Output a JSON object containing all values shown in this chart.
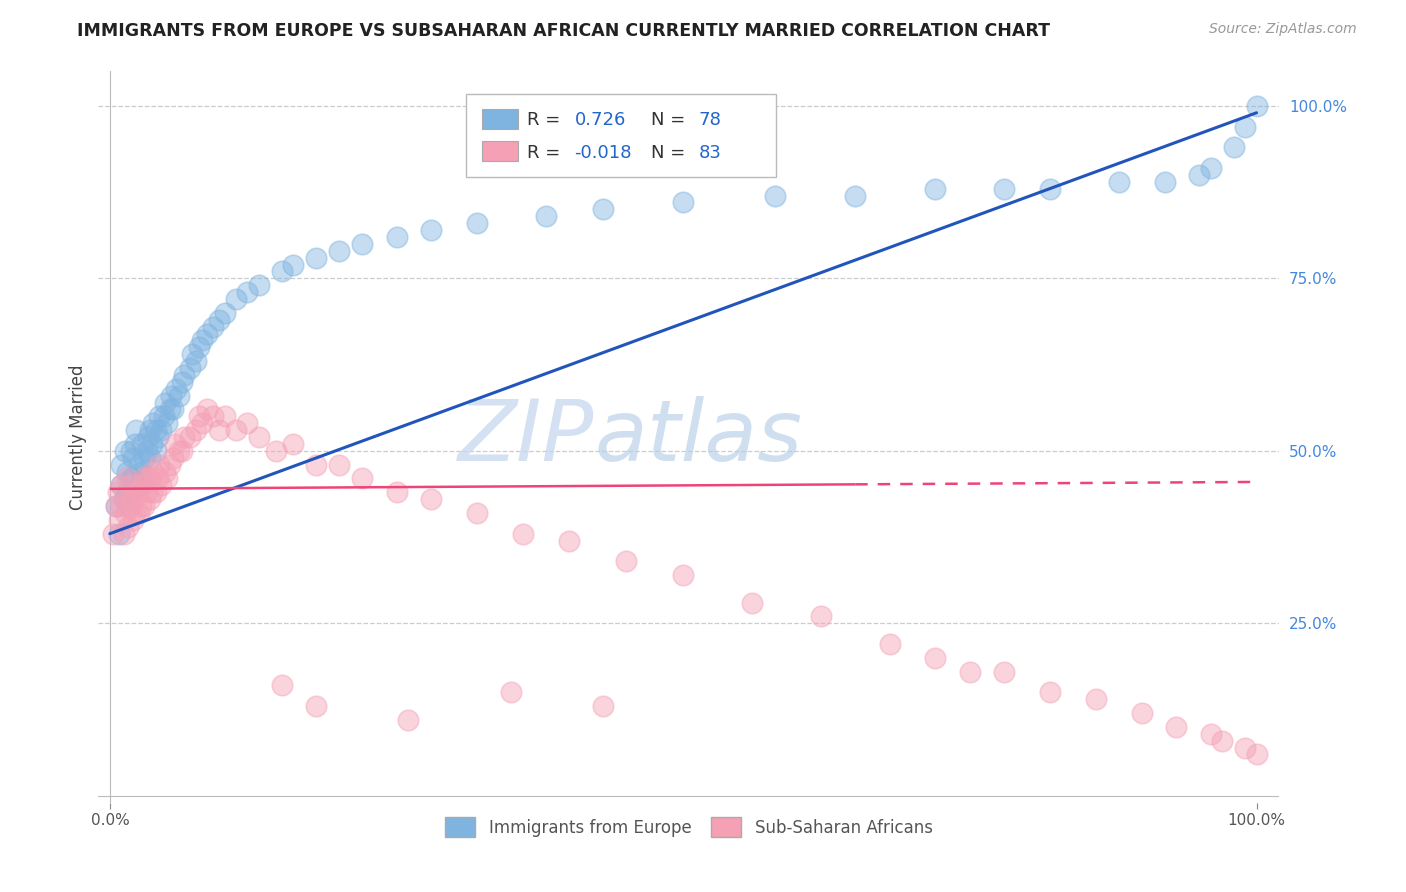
{
  "title": "IMMIGRANTS FROM EUROPE VS SUBSAHARAN AFRICAN CURRENTLY MARRIED CORRELATION CHART",
  "source": "Source: ZipAtlas.com",
  "ylabel": "Currently Married",
  "blue_color": "#7fb3e0",
  "pink_color": "#f5a0b5",
  "blue_line_color": "#2255bb",
  "pink_line_color": "#ee4477",
  "background_color": "#ffffff",
  "grid_color": "#cccccc",
  "watermark_zip": "ZIP",
  "watermark_atlas": "atlas",
  "legend_r1": "R =",
  "legend_v1": "0.726",
  "legend_n1_label": "N =",
  "legend_n1": "78",
  "legend_r2": "R =",
  "legend_v2": "-0.018",
  "legend_n2_label": "N =",
  "legend_n2": "83",
  "blue_scatter_x": [
    0.005,
    0.008,
    0.01,
    0.01,
    0.012,
    0.013,
    0.015,
    0.015,
    0.016,
    0.018,
    0.018,
    0.02,
    0.02,
    0.02,
    0.022,
    0.023,
    0.025,
    0.025,
    0.027,
    0.028,
    0.03,
    0.03,
    0.032,
    0.033,
    0.035,
    0.035,
    0.037,
    0.038,
    0.04,
    0.04,
    0.042,
    0.043,
    0.045,
    0.047,
    0.048,
    0.05,
    0.052,
    0.053,
    0.055,
    0.058,
    0.06,
    0.063,
    0.065,
    0.07,
    0.072,
    0.075,
    0.078,
    0.08,
    0.085,
    0.09,
    0.095,
    0.1,
    0.11,
    0.12,
    0.13,
    0.15,
    0.16,
    0.18,
    0.2,
    0.22,
    0.25,
    0.28,
    0.32,
    0.38,
    0.43,
    0.5,
    0.58,
    0.65,
    0.72,
    0.78,
    0.82,
    0.88,
    0.92,
    0.95,
    0.96,
    0.98,
    0.99,
    1.0
  ],
  "blue_scatter_y": [
    0.42,
    0.38,
    0.45,
    0.48,
    0.43,
    0.5,
    0.44,
    0.47,
    0.42,
    0.46,
    0.5,
    0.44,
    0.46,
    0.49,
    0.51,
    0.53,
    0.45,
    0.48,
    0.47,
    0.51,
    0.46,
    0.49,
    0.5,
    0.52,
    0.49,
    0.53,
    0.51,
    0.54,
    0.5,
    0.53,
    0.52,
    0.55,
    0.53,
    0.55,
    0.57,
    0.54,
    0.56,
    0.58,
    0.56,
    0.59,
    0.58,
    0.6,
    0.61,
    0.62,
    0.64,
    0.63,
    0.65,
    0.66,
    0.67,
    0.68,
    0.69,
    0.7,
    0.72,
    0.73,
    0.74,
    0.76,
    0.77,
    0.78,
    0.79,
    0.8,
    0.81,
    0.82,
    0.83,
    0.84,
    0.85,
    0.86,
    0.87,
    0.87,
    0.88,
    0.88,
    0.88,
    0.89,
    0.89,
    0.9,
    0.91,
    0.94,
    0.97,
    1.0
  ],
  "pink_scatter_x": [
    0.003,
    0.005,
    0.007,
    0.008,
    0.01,
    0.01,
    0.012,
    0.013,
    0.015,
    0.015,
    0.016,
    0.018,
    0.018,
    0.02,
    0.02,
    0.022,
    0.023,
    0.025,
    0.025,
    0.027,
    0.028,
    0.03,
    0.03,
    0.032,
    0.033,
    0.035,
    0.035,
    0.037,
    0.038,
    0.04,
    0.042,
    0.043,
    0.045,
    0.048,
    0.05,
    0.052,
    0.055,
    0.057,
    0.06,
    0.063,
    0.065,
    0.07,
    0.075,
    0.078,
    0.08,
    0.085,
    0.09,
    0.095,
    0.1,
    0.11,
    0.12,
    0.13,
    0.145,
    0.16,
    0.18,
    0.2,
    0.22,
    0.25,
    0.28,
    0.32,
    0.36,
    0.4,
    0.45,
    0.5,
    0.56,
    0.62,
    0.68,
    0.72,
    0.75,
    0.78,
    0.82,
    0.86,
    0.9,
    0.93,
    0.96,
    0.97,
    0.99,
    1.0,
    0.15,
    0.18,
    0.26,
    0.35,
    0.43
  ],
  "pink_scatter_y": [
    0.38,
    0.42,
    0.44,
    0.4,
    0.42,
    0.45,
    0.38,
    0.41,
    0.43,
    0.46,
    0.39,
    0.42,
    0.45,
    0.4,
    0.43,
    0.41,
    0.44,
    0.41,
    0.44,
    0.42,
    0.45,
    0.42,
    0.46,
    0.44,
    0.46,
    0.43,
    0.46,
    0.44,
    0.47,
    0.44,
    0.46,
    0.48,
    0.45,
    0.47,
    0.46,
    0.48,
    0.49,
    0.51,
    0.5,
    0.5,
    0.52,
    0.52,
    0.53,
    0.55,
    0.54,
    0.56,
    0.55,
    0.53,
    0.55,
    0.53,
    0.54,
    0.52,
    0.5,
    0.51,
    0.48,
    0.48,
    0.46,
    0.44,
    0.43,
    0.41,
    0.38,
    0.37,
    0.34,
    0.32,
    0.28,
    0.26,
    0.22,
    0.2,
    0.18,
    0.18,
    0.15,
    0.14,
    0.12,
    0.1,
    0.09,
    0.08,
    0.07,
    0.06,
    0.16,
    0.13,
    0.11,
    0.15,
    0.13
  ]
}
